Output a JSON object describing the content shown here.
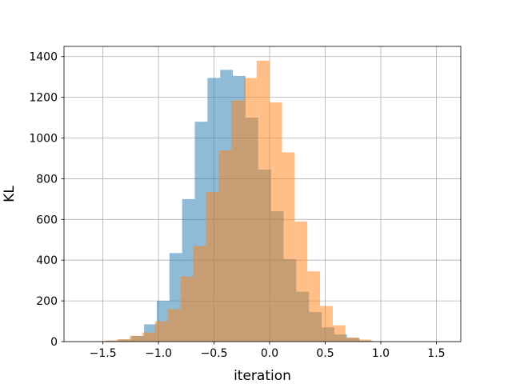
{
  "chart_data": {
    "type": "bar",
    "title": "",
    "xlabel": "iteration",
    "ylabel": "KL",
    "xlim": [
      -1.85,
      1.72
    ],
    "ylim": [
      0,
      1450
    ],
    "grid": true,
    "legend": "none",
    "xticks": [
      -1.5,
      -1.0,
      -0.5,
      0.0,
      0.5,
      1.0,
      1.5
    ],
    "xtick_labels": [
      "−1.5",
      "−1.0",
      "−0.5",
      "0.0",
      "0.5",
      "1.0",
      "1.5"
    ],
    "yticks": [
      0,
      200,
      400,
      600,
      800,
      1000,
      1200,
      1400
    ],
    "ytick_labels": [
      "0",
      "200",
      "400",
      "600",
      "800",
      "1000",
      "1200",
      "1400"
    ],
    "series": [
      {
        "color": "#1f77b4",
        "bin_start": -1.7,
        "bin_width": 0.1141,
        "values": [
          1,
          2,
          5,
          10,
          28,
          85,
          200,
          435,
          700,
          1080,
          1295,
          1335,
          1305,
          1100,
          845,
          640,
          405,
          245,
          145,
          70,
          35,
          18,
          5,
          2,
          1
        ]
      },
      {
        "color": "#ff7f0e",
        "bin_start": -1.6,
        "bin_width": 0.1141,
        "values": [
          2,
          5,
          12,
          28,
          45,
          100,
          160,
          320,
          470,
          735,
          940,
          1185,
          1295,
          1380,
          1175,
          930,
          590,
          345,
          175,
          80,
          20,
          10
        ]
      }
    ]
  }
}
